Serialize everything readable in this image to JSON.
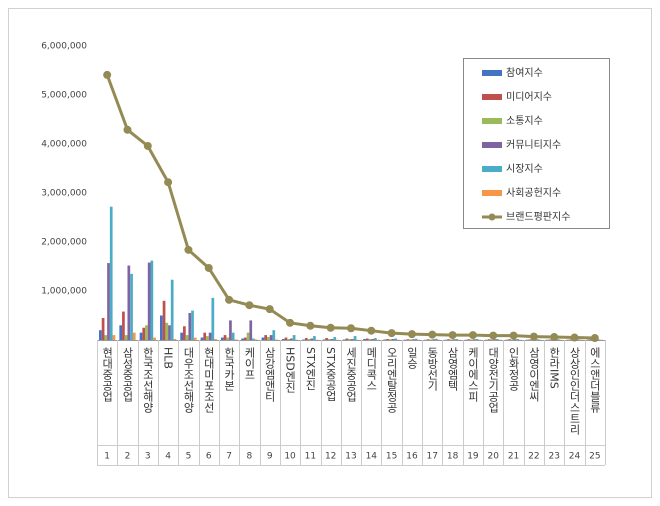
{
  "chart_data": {
    "type": "bar",
    "categories": [
      "현대중공업",
      "삼성중공업",
      "한국조선해양",
      "HLB",
      "대우조선해양",
      "현대미포조선",
      "한국카본",
      "케이프",
      "삼강엠앤티",
      "HSD엔진",
      "STX엔진",
      "STX중공업",
      "세진중공업",
      "메디콕스",
      "오리엔탈정공",
      "일승",
      "동방선기",
      "삼영엠텍",
      "케이에스피",
      "대양전기공업",
      "인화정공",
      "삼영이엔씨",
      "한라IMS",
      "상상인인더스트리",
      "에스앤더블류"
    ],
    "ranks": [
      "1",
      "2",
      "3",
      "4",
      "5",
      "6",
      "7",
      "8",
      "9",
      "10",
      "11",
      "12",
      "13",
      "14",
      "15",
      "16",
      "17",
      "18",
      "19",
      "20",
      "21",
      "22",
      "23",
      "24",
      "25"
    ],
    "series": [
      {
        "name": "참여지수",
        "color": "#4472c4",
        "values": [
          200000,
          300000,
          150000,
          500000,
          150000,
          50000,
          50000,
          30000,
          50000,
          20000,
          10000,
          10000,
          10000,
          20000,
          10000,
          5000,
          5000,
          5000,
          5000,
          5000,
          5000,
          5000,
          5000,
          5000,
          5000
        ]
      },
      {
        "name": "미디어지수",
        "color": "#c0504d",
        "values": [
          450000,
          580000,
          250000,
          800000,
          280000,
          150000,
          100000,
          50000,
          100000,
          50000,
          40000,
          40000,
          30000,
          30000,
          20000,
          15000,
          15000,
          15000,
          15000,
          15000,
          15000,
          10000,
          10000,
          10000,
          10000
        ]
      },
      {
        "name": "소통지수",
        "color": "#9bbb59",
        "values": [
          100000,
          100000,
          300000,
          350000,
          100000,
          80000,
          50000,
          150000,
          60000,
          20000,
          20000,
          20000,
          20000,
          20000,
          15000,
          10000,
          10000,
          10000,
          10000,
          10000,
          10000,
          10000,
          10000,
          10000,
          5000
        ]
      },
      {
        "name": "커뮤니티지수",
        "color": "#8064a2",
        "values": [
          1570000,
          1520000,
          1580000,
          300000,
          550000,
          150000,
          400000,
          400000,
          100000,
          30000,
          30000,
          20000,
          20000,
          20000,
          20000,
          15000,
          15000,
          15000,
          15000,
          15000,
          15000,
          10000,
          10000,
          10000,
          10000
        ]
      },
      {
        "name": "시장지수",
        "color": "#4bacc6",
        "values": [
          2720000,
          1350000,
          1620000,
          1230000,
          600000,
          860000,
          150000,
          30000,
          200000,
          100000,
          80000,
          60000,
          80000,
          40000,
          30000,
          25000,
          25000,
          20000,
          20000,
          20000,
          20000,
          15000,
          15000,
          10000,
          10000
        ]
      },
      {
        "name": "사회공헌지수",
        "color": "#f79646",
        "values": [
          100000,
          150000,
          50000,
          20000,
          50000,
          20000,
          10000,
          10000,
          10000,
          5000,
          5000,
          5000,
          5000,
          5000,
          5000,
          5000,
          5000,
          5000,
          5000,
          5000,
          5000,
          5000,
          5000,
          5000,
          5000
        ]
      },
      {
        "name": "브랜드평판지수",
        "color": "#948a54",
        "line": true,
        "values": [
          5410000,
          4290000,
          3960000,
          3220000,
          1840000,
          1470000,
          820000,
          710000,
          630000,
          350000,
          290000,
          250000,
          240000,
          190000,
          140000,
          120000,
          110000,
          100000,
          100000,
          90000,
          90000,
          70000,
          60000,
          50000,
          40000
        ]
      }
    ],
    "ylim": [
      0,
      6000000
    ],
    "yticks": [
      {
        "value": 1000000,
        "label": "1,000,000"
      },
      {
        "value": 2000000,
        "label": "2,000,000"
      },
      {
        "value": 3000000,
        "label": "3,000,000"
      },
      {
        "value": 4000000,
        "label": "4,000,000"
      },
      {
        "value": 5000000,
        "label": "5,000,000"
      },
      {
        "value": 6000000,
        "label": "6,000,000"
      }
    ],
    "grid": false
  }
}
